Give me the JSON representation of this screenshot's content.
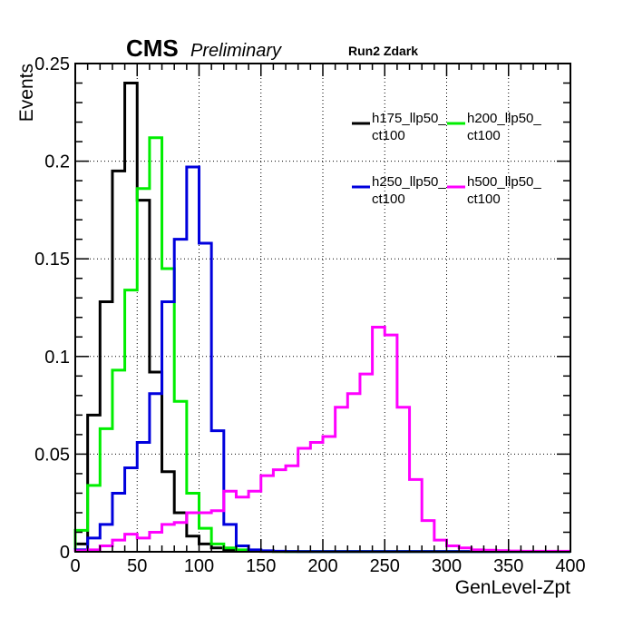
{
  "chart_data": {
    "type": "histogram-step",
    "header": {
      "experiment": "CMS",
      "status": "Preliminary",
      "run": "Run2 Zdark"
    },
    "xlabel": "GenLevel-Zpt",
    "ylabel": "Events",
    "xlim": [
      0,
      400
    ],
    "ylim": [
      0,
      0.25
    ],
    "xticks": [
      0,
      50,
      100,
      150,
      200,
      250,
      300,
      350,
      400
    ],
    "yticks": [
      0,
      0.05,
      0.1,
      0.15,
      0.2,
      0.25
    ],
    "ytick_labels": [
      "0",
      "0.05",
      "0.1",
      "0.15",
      "0.2",
      "0.25"
    ],
    "grid": true,
    "bin_width": 10,
    "series": [
      {
        "name_line1": "h175_llp50_",
        "name_line2": "ct100",
        "color": "#000000",
        "values": [
          0.004,
          0.07,
          0.128,
          0.195,
          0.24,
          0.18,
          0.092,
          0.041,
          0.02,
          0.008,
          0.004,
          0.002,
          0.001,
          0.0005,
          0.0003,
          0.0002,
          0.0001,
          0.0001,
          0.0001,
          0.0001,
          0.0001,
          0.0001,
          0.0001,
          0.0001,
          0.0001,
          0.0001,
          0.0001,
          0.0001,
          0.0001,
          0.0001,
          0.0001,
          0.0001,
          0.0001,
          0.0001,
          0.0001,
          0.0001,
          0.0001,
          0.0001,
          0.0001,
          0.0001
        ]
      },
      {
        "name_line1": "h200_llp50_",
        "name_line2": "ct100",
        "color": "#00ee00",
        "values": [
          0.011,
          0.034,
          0.063,
          0.093,
          0.134,
          0.186,
          0.212,
          0.145,
          0.077,
          0.03,
          0.012,
          0.004,
          0.002,
          0.001,
          0.0005,
          0.0003,
          0.0002,
          0.0001,
          0.0001,
          0.0001,
          0.0001,
          0.0001,
          0.0001,
          0.0001,
          0.0001,
          0.0001,
          0.0001,
          0.0001,
          0.0001,
          0.0001,
          0.0001,
          0.0001,
          0.0001,
          0.0001,
          0.0001,
          0.0001,
          0.0001,
          0.0001,
          0.0001,
          0.0001
        ]
      },
      {
        "name_line1": "h250_llp50_",
        "name_line2": "ct100",
        "color": "#0000dd",
        "values": [
          0.001,
          0.007,
          0.014,
          0.03,
          0.043,
          0.056,
          0.081,
          0.128,
          0.16,
          0.197,
          0.158,
          0.062,
          0.014,
          0.003,
          0.001,
          0.0005,
          0.0003,
          0.0002,
          0.0001,
          0.0001,
          0.0001,
          0.0001,
          0.0001,
          0.0001,
          0.0001,
          0.0001,
          0.0001,
          0.0001,
          0.0001,
          0.0001,
          0.0001,
          0.0001,
          0.0001,
          0.0001,
          0.0001,
          0.0001,
          0.0001,
          0.0001,
          0.0001,
          0.0001
        ]
      },
      {
        "name_line1": "h500_llp50_",
        "name_line2": "ct100",
        "color": "#ff00ff",
        "values": [
          0.0005,
          0.001,
          0.003,
          0.006,
          0.009,
          0.007,
          0.01,
          0.014,
          0.015,
          0.02,
          0.02,
          0.021,
          0.031,
          0.028,
          0.031,
          0.039,
          0.042,
          0.044,
          0.053,
          0.056,
          0.059,
          0.074,
          0.081,
          0.091,
          0.115,
          0.111,
          0.074,
          0.037,
          0.016,
          0.006,
          0.003,
          0.002,
          0.001,
          0.0008,
          0.0006,
          0.0004,
          0.0003,
          0.0003,
          0.0003,
          0.0003
        ]
      }
    ]
  }
}
